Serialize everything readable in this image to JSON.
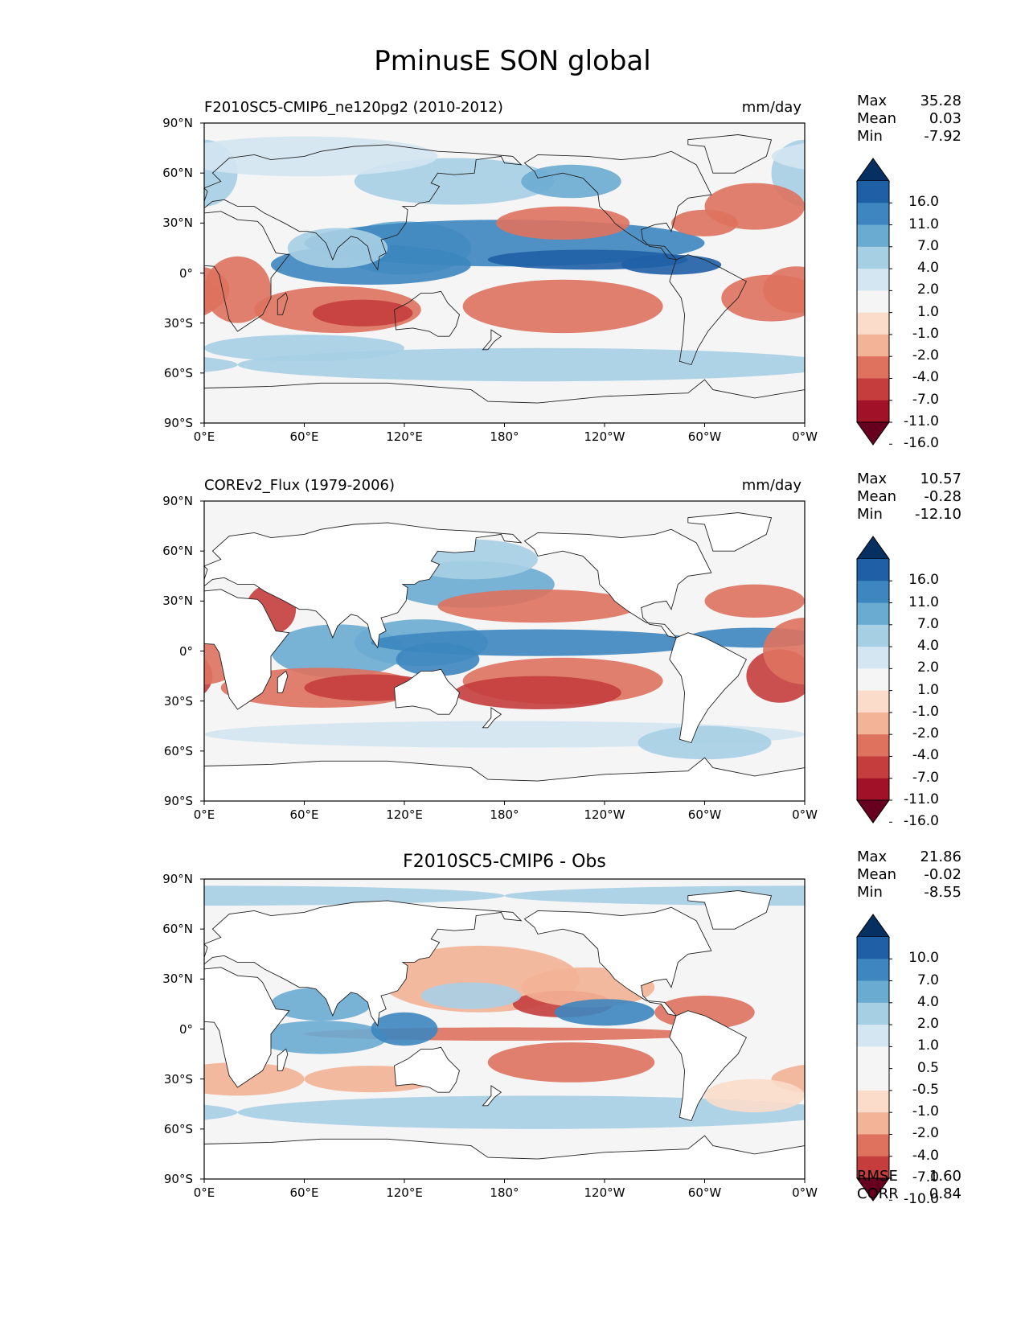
{
  "figure": {
    "title": "PminusE SON global"
  },
  "axes": {
    "lat_ticks": [
      "90°N",
      "60°N",
      "30°N",
      "0°",
      "30°S",
      "60°S",
      "90°S"
    ],
    "lon_ticks": [
      "0°E",
      "60°E",
      "120°E",
      "180°",
      "120°W",
      "60°W",
      "0°W"
    ]
  },
  "panels": [
    {
      "id": "model",
      "title": "F2010SC5-CMIP6_ne120pg2 (2010-2012)",
      "units": "mm/day",
      "centered": false,
      "stats": [
        {
          "label": "Max",
          "value": "35.28"
        },
        {
          "label": "Mean",
          "value": "0.03"
        },
        {
          "label": "Min",
          "value": "-7.92"
        }
      ],
      "colorbar_levels": [
        "16.0",
        "11.0",
        "7.0",
        "4.0",
        "2.0",
        "1.0",
        "-1.0",
        "-2.0",
        "-4.0",
        "-7.0",
        "-11.0",
        "-16.0"
      ],
      "colorbar_colors": [
        "#053061",
        "#1f5fa6",
        "#3d86bf",
        "#6aabd2",
        "#a7cfe4",
        "#d3e6f1",
        "#f5f5f5",
        "#fbdbca",
        "#f3b396",
        "#de725e",
        "#c53e3d",
        "#a11228",
        "#67001f"
      ]
    },
    {
      "id": "obs",
      "title": "COREv2_Flux (1979-2006)",
      "units": "mm/day",
      "centered": false,
      "stats": [
        {
          "label": "Max",
          "value": "10.57"
        },
        {
          "label": "Mean",
          "value": "-0.28"
        },
        {
          "label": "Min",
          "value": "-12.10"
        }
      ],
      "colorbar_levels": [
        "16.0",
        "11.0",
        "7.0",
        "4.0",
        "2.0",
        "1.0",
        "-1.0",
        "-2.0",
        "-4.0",
        "-7.0",
        "-11.0",
        "-16.0"
      ],
      "colorbar_colors": [
        "#053061",
        "#1f5fa6",
        "#3d86bf",
        "#6aabd2",
        "#a7cfe4",
        "#d3e6f1",
        "#f5f5f5",
        "#fbdbca",
        "#f3b396",
        "#de725e",
        "#c53e3d",
        "#a11228",
        "#67001f"
      ]
    },
    {
      "id": "diff",
      "title": "F2010SC5-CMIP6 - Obs",
      "units": "",
      "centered": true,
      "stats": [
        {
          "label": "Max",
          "value": "21.86"
        },
        {
          "label": "Mean",
          "value": "-0.02"
        },
        {
          "label": "Min",
          "value": "-8.55"
        }
      ],
      "extra_stats": [
        {
          "label": "RMSE",
          "value": "1.60"
        },
        {
          "label": "CORR",
          "value": "0.84"
        }
      ],
      "colorbar_levels": [
        "10.0",
        "7.0",
        "4.0",
        "2.0",
        "1.0",
        "0.5",
        "-0.5",
        "-1.0",
        "-2.0",
        "-4.0",
        "-7.0",
        "-10.0"
      ],
      "colorbar_colors": [
        "#053061",
        "#1f5fa6",
        "#3d86bf",
        "#6aabd2",
        "#a7cfe4",
        "#d3e6f1",
        "#f5f5f5",
        "#f5f5f5",
        "#fbdbca",
        "#f3b396",
        "#de725e",
        "#c53e3d",
        "#67001f"
      ]
    }
  ]
}
